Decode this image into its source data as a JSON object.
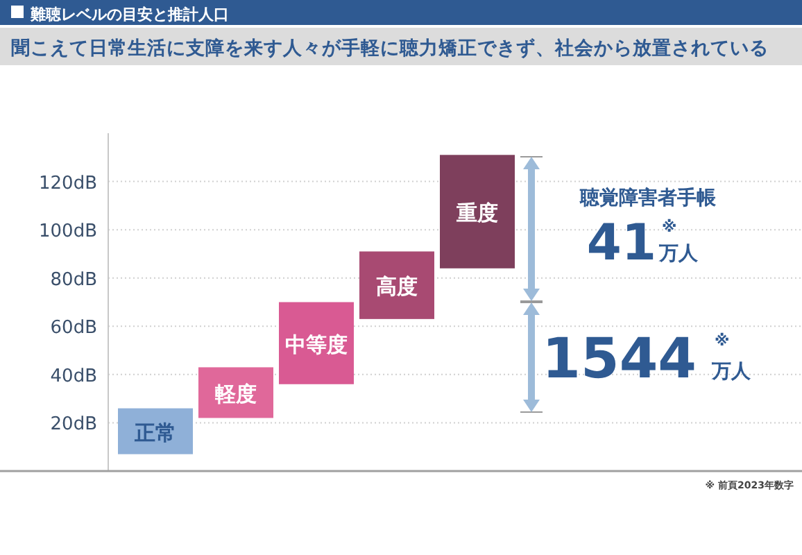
{
  "chart_data": {
    "type": "bar",
    "title": "難聴レベルの目安と推計人口",
    "subtitle": "聞こえて日常生活に支障を来す人々が手軽に聴力矯正できず、社会から放置されている",
    "categories": [
      "正常",
      "軽度",
      "中等度",
      "高度",
      "重度"
    ],
    "base": [
      7,
      22,
      36,
      63,
      84
    ],
    "values": [
      19,
      21,
      34,
      28,
      47
    ],
    "colors": [
      "#8fb0d8",
      "#e0689a",
      "#d95a93",
      "#a84a72",
      "#7e3f5c"
    ],
    "ylim": [
      0,
      140
    ],
    "yticks": [
      {
        "value": 20,
        "label": "20dB"
      },
      {
        "value": 40,
        "label": "40dB"
      },
      {
        "value": 60,
        "label": "60dB"
      },
      {
        "value": 80,
        "label": "80dB"
      },
      {
        "value": 100,
        "label": "100dB"
      },
      {
        "value": 120,
        "label": "120dB"
      }
    ],
    "grid": "y",
    "tick_labels": "y",
    "annotations": [
      "聴覚障害者手帳",
      "41",
      "※",
      "万人",
      "1544",
      "※",
      "万人",
      "※ 前頁2023年数字"
    ]
  }
}
